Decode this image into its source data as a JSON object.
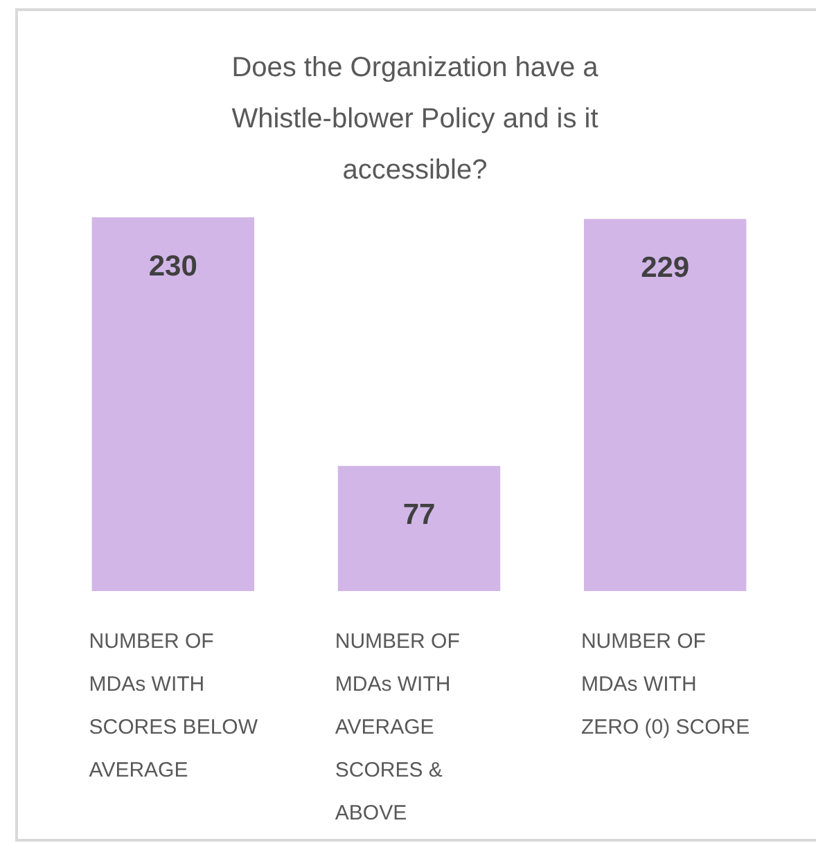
{
  "chart_data": {
    "type": "bar",
    "title": "Does the Organization have a Whistle-blower Policy and is it accessible?",
    "categories": [
      "NUMBER OF MDAs WITH SCORES BELOW AVERAGE",
      "NUMBER OF MDAs WITH AVERAGE SCORES & ABOVE",
      "NUMBER OF MDAs WITH ZERO (0) SCORE"
    ],
    "values": [
      230,
      77,
      229
    ],
    "color": "#d2b6e8",
    "data_labels": true
  }
}
